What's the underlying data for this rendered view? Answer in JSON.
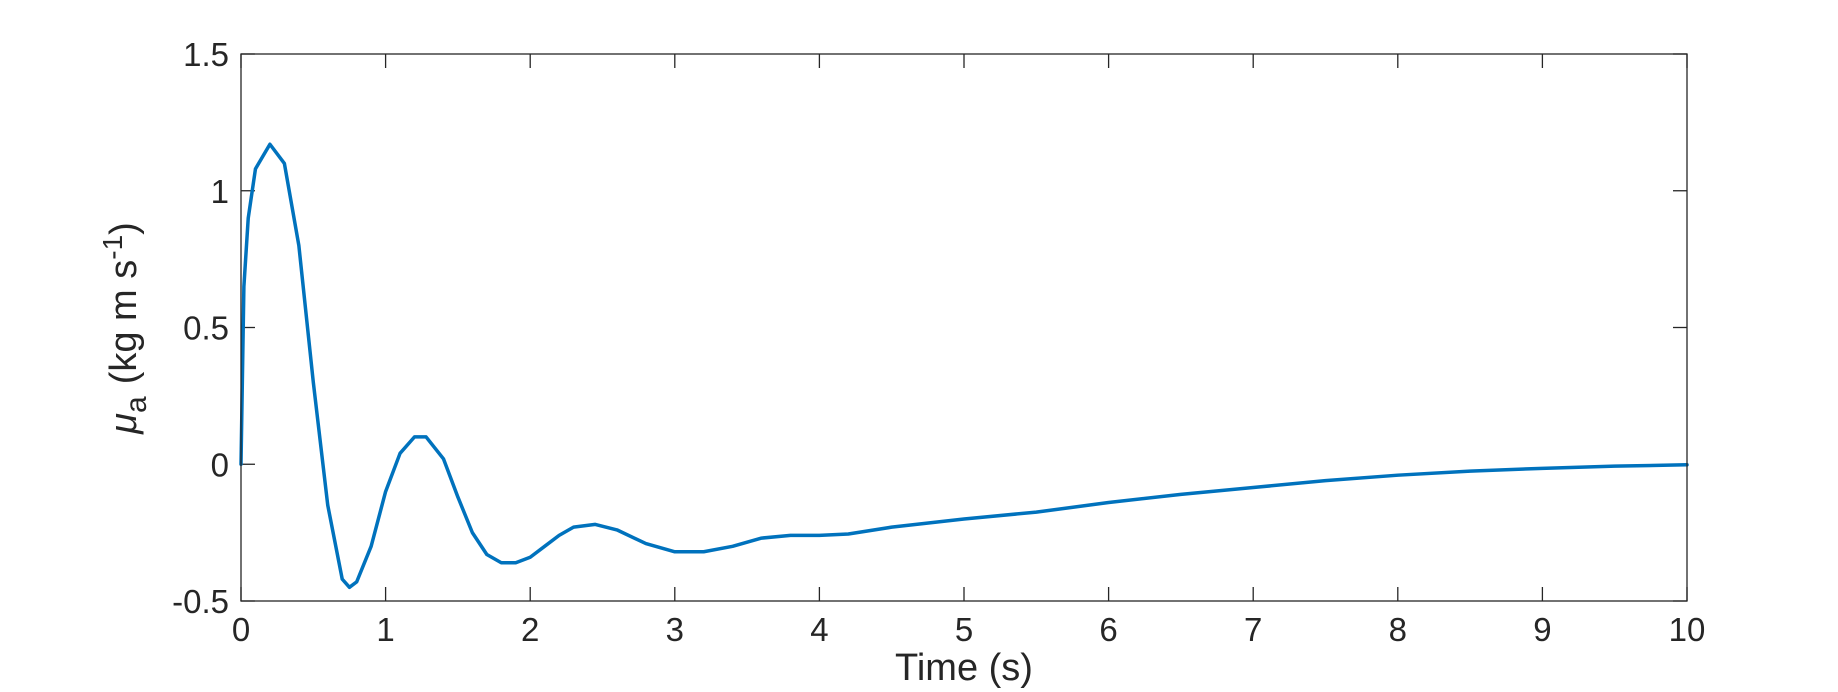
{
  "chart_data": {
    "type": "line",
    "xlabel": "Time (s)",
    "ylabel": {
      "symbol": "μ",
      "subscript": "a",
      "unit": "(kg m s",
      "superscript": "-1",
      "close": ")"
    },
    "x": [
      0,
      0.02,
      0.05,
      0.1,
      0.2,
      0.3,
      0.4,
      0.5,
      0.6,
      0.7,
      0.75,
      0.8,
      0.9,
      1.0,
      1.1,
      1.2,
      1.28,
      1.4,
      1.5,
      1.6,
      1.7,
      1.8,
      1.9,
      2.0,
      2.1,
      2.2,
      2.3,
      2.45,
      2.6,
      2.8,
      3.0,
      3.2,
      3.4,
      3.6,
      3.8,
      4.0,
      4.2,
      4.5,
      5,
      5.5,
      6,
      6.5,
      7,
      7.5,
      8,
      8.5,
      9,
      9.5,
      10
    ],
    "series": [
      {
        "color": "#0072bd",
        "values": [
          0,
          0.65,
          0.9,
          1.08,
          1.17,
          1.1,
          0.8,
          0.3,
          -0.15,
          -0.42,
          -0.45,
          -0.43,
          -0.3,
          -0.1,
          0.04,
          0.1,
          0.1,
          0.02,
          -0.12,
          -0.25,
          -0.33,
          -0.36,
          -0.36,
          -0.34,
          -0.3,
          -0.26,
          -0.23,
          -0.22,
          -0.24,
          -0.29,
          -0.32,
          -0.32,
          -0.3,
          -0.27,
          -0.26,
          -0.26,
          -0.255,
          -0.23,
          -0.2,
          -0.175,
          -0.14,
          -0.11,
          -0.085,
          -0.06,
          -0.04,
          -0.025,
          -0.015,
          -0.007,
          -0.002
        ]
      }
    ],
    "xlim": [
      0,
      10
    ],
    "ylim": [
      -0.5,
      1.5
    ],
    "xticks": [
      0,
      1,
      2,
      3,
      4,
      5,
      6,
      7,
      8,
      9,
      10
    ],
    "yticks": [
      -0.5,
      0,
      0.5,
      1,
      1.5
    ],
    "grid": false
  }
}
